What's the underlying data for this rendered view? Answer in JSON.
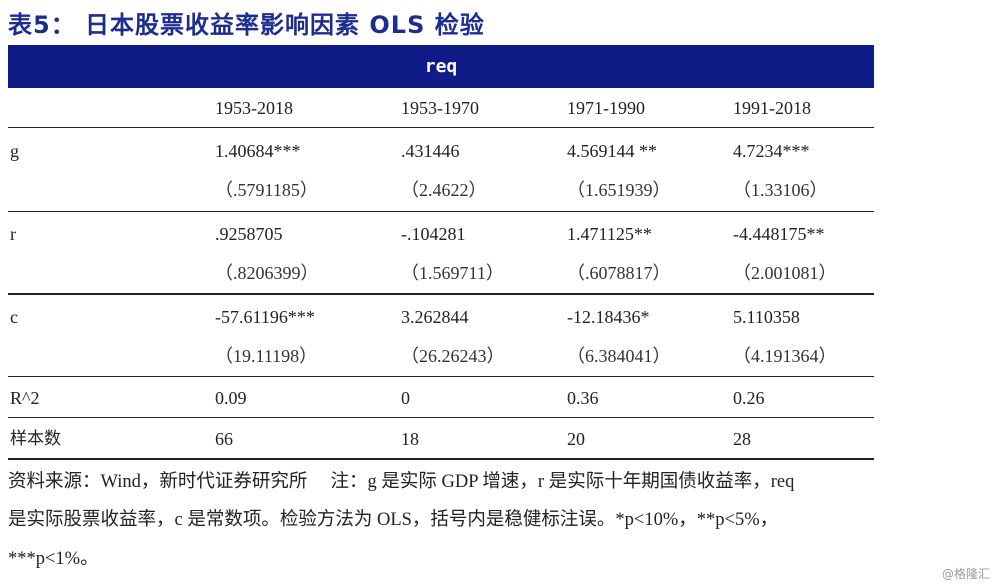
{
  "title": "表5： 日本股票收益率影响因素 OLS 检验",
  "dependent_var": "req",
  "columns": [
    "1953-2018",
    "1953-1970",
    "1971-1990",
    "1991-2018"
  ],
  "rows": [
    {
      "label": "g",
      "coef": [
        "1.40684***",
        ".431446",
        "4.569144 **",
        "4.7234***"
      ],
      "se": [
        "（.5791185）",
        "（2.4622）",
        "（1.651939）",
        "（1.33106）"
      ]
    },
    {
      "label": "r",
      "coef": [
        ".9258705",
        "-.104281",
        "1.471125**",
        "-4.448175**"
      ],
      "se": [
        "（.8206399）",
        "（1.569711）",
        "（.6078817）",
        "（2.001081）"
      ]
    },
    {
      "label": "c",
      "coef": [
        "-57.61196***",
        "3.262844",
        "-12.18436*",
        "5.110358"
      ],
      "se": [
        "（19.11198）",
        "（26.26243）",
        "（6.384041）",
        "（4.191364）"
      ]
    }
  ],
  "r2": {
    "label": "R^2",
    "values": [
      "0.09",
      "0",
      "0.36",
      "0.26"
    ]
  },
  "n": {
    "label": "样本数",
    "values": [
      "66",
      "18",
      "20",
      "28"
    ]
  },
  "notes": [
    "资料来源：Wind，新时代证券研究所　 注：g 是实际 GDP 增速，r 是实际十年期国债收益率，req",
    "是实际股票收益率，c 是常数项。检验方法为 OLS，括号内是稳健标注误。*p<10%，**p<5%，",
    "***p<1%。"
  ],
  "watermark": "@格隆汇"
}
